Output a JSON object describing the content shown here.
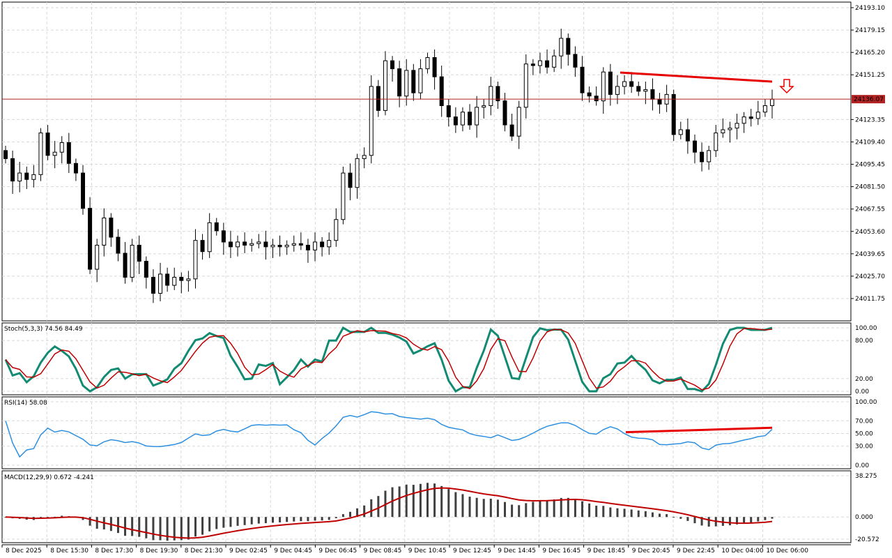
{
  "colors": {
    "background": "#ffffff",
    "grid": "#d8d8d8",
    "candle_up_body": "#ffffff",
    "candle_down_body": "#000000",
    "candle_outline": "#000000",
    "price_line": "#b22222",
    "trend_line": "#e60000",
    "stoch_main": "#138a72",
    "stoch_signal": "#c00000",
    "rsi_line": "#2d8fe0",
    "macd_hist": "#404040",
    "macd_signal": "#c00000",
    "arrow": "#e60000"
  },
  "chart_data": [
    {
      "type": "candlestick",
      "name": "price",
      "y_axis": {
        "ticks": [
          "24193.10",
          "24179.15",
          "24165.20",
          "24151.25",
          "24136.07",
          "24123.35",
          "24109.40",
          "24095.45",
          "24081.50",
          "24067.55",
          "24053.60",
          "24039.65",
          "24025.70",
          "24011.75"
        ],
        "current_price_label": "24136.07"
      },
      "current_price": 24136.07,
      "ylim": [
        24006,
        24195
      ],
      "x_tick_labels": [
        "8 Dec 2025",
        "8 Dec 15:30",
        "8 Dec 17:30",
        "8 Dec 19:30",
        "8 Dec 21:30",
        "9 Dec 02:45",
        "9 Dec 04:45",
        "9 Dec 06:45",
        "9 Dec 08:45",
        "9 Dec 10:45",
        "9 Dec 12:45",
        "9 Dec 14:45",
        "9 Dec 16:45",
        "9 Dec 18:45",
        "9 Dec 20:45",
        "9 Dec 22:45",
        "10 Dec 04:00",
        "10 Dec 06:00"
      ],
      "close_series": [
        24099,
        24085,
        24090,
        24086,
        24089,
        24115,
        24101,
        24103,
        24109,
        24096,
        24090,
        24068,
        24030,
        24045,
        24062,
        24050,
        24040,
        24025,
        24045,
        24035,
        24025,
        24015,
        24027,
        24020,
        24025,
        24023,
        24024,
        24048,
        24041,
        24059,
        24054,
        24047,
        24044,
        24047,
        24045,
        24046,
        24047,
        24044,
        24045,
        24044,
        24045,
        24046,
        24045,
        24042,
        24047,
        24044,
        24048,
        24061,
        24090,
        24081,
        24099,
        24101,
        24144,
        24129,
        24160,
        24155,
        24138,
        24154,
        24140,
        24155,
        24162,
        24150,
        24132,
        24125,
        24120,
        24128,
        24120,
        24131,
        24132,
        24144,
        24135,
        24120,
        24113,
        24131,
        24158,
        24157,
        24160,
        24156,
        24163,
        24174,
        24164,
        24156,
        24140,
        24138,
        24135,
        24153,
        24139,
        24144,
        24147,
        24144,
        24141,
        24142,
        24136,
        24133,
        24139,
        24114,
        24117,
        24110,
        24103,
        24097,
        24104,
        24115,
        24117,
        24118,
        24121,
        24125,
        24124,
        24128,
        24132,
        24136
      ]
    },
    {
      "type": "line",
      "name": "stochastic",
      "title": "Stoch(5,3,3) 74.56 84.49",
      "ylim": [
        0,
        100
      ],
      "y_ticks": [
        "100.00",
        "80.00",
        "20.00",
        "0.00"
      ],
      "levels": [
        80,
        20
      ]
    },
    {
      "type": "line",
      "name": "rsi",
      "title": "RSI(14) 58.08",
      "ylim": [
        0,
        100
      ],
      "y_ticks": [
        "100.00",
        "70.00",
        "50.00",
        "30.00",
        "0.00"
      ],
      "levels": [
        70,
        30
      ]
    },
    {
      "type": "bar",
      "name": "macd",
      "title": "MACD(12,29,9) 0.672 -4.241",
      "ylim": [
        -20.572,
        38.275
      ],
      "y_ticks": [
        "38.275",
        "0.000",
        "-20.572"
      ]
    }
  ]
}
